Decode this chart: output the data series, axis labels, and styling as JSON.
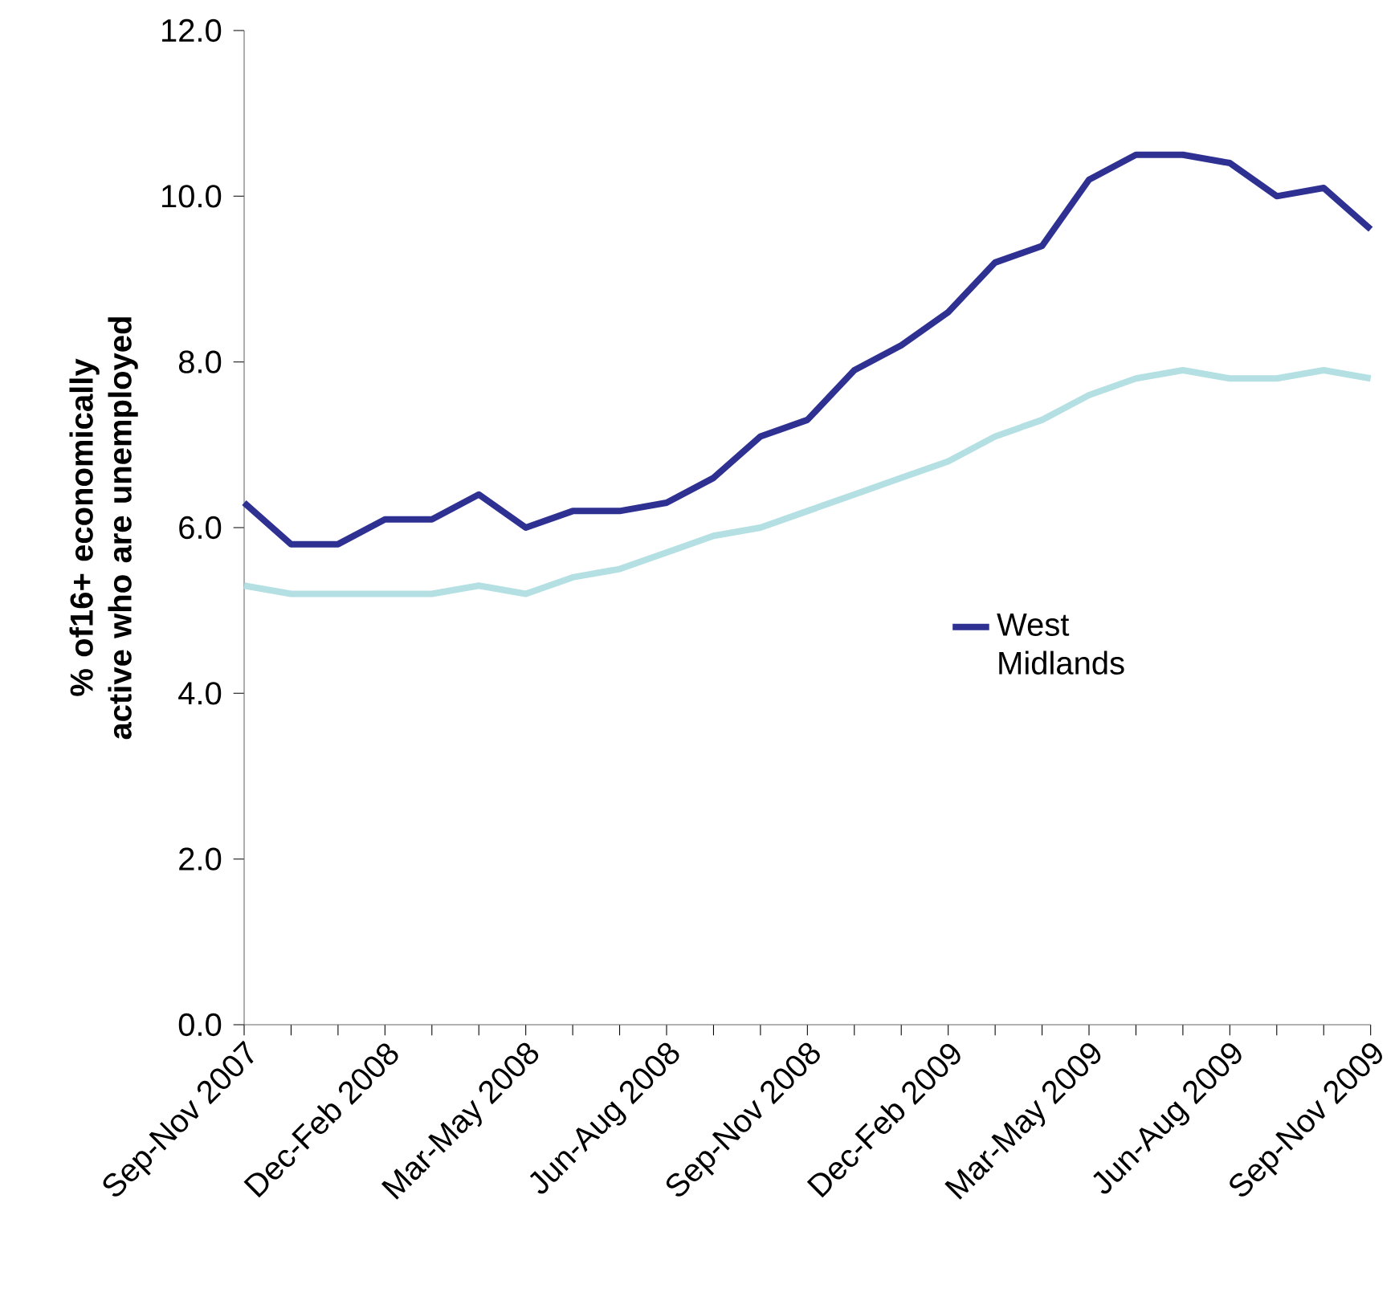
{
  "chart_data": {
    "type": "line",
    "ylabel": "% of16+ economically active who are unemployed",
    "categories": [
      "Sep-Nov 2007",
      null,
      null,
      "Dec-Feb 2008",
      null,
      null,
      "Mar-May 2008",
      null,
      null,
      "Jun-Aug 2008",
      null,
      null,
      "Sep-Nov 2008",
      null,
      null,
      "Dec-Feb 2009",
      null,
      null,
      "Mar-May 2009",
      null,
      null,
      "Jun-Aug 2009",
      null,
      null,
      "Sep-Nov 2009"
    ],
    "series": [
      {
        "name": "West Midlands",
        "color": "#2e3192",
        "values": [
          6.3,
          5.8,
          5.8,
          6.1,
          6.1,
          6.4,
          6.0,
          6.2,
          6.2,
          6.3,
          6.6,
          7.1,
          7.3,
          7.9,
          8.2,
          8.6,
          9.2,
          9.4,
          10.2,
          10.5,
          10.5,
          10.4,
          10.0,
          10.1,
          9.6
        ]
      },
      {
        "color": "#b4e0e4",
        "values": [
          5.3,
          5.2,
          5.2,
          5.2,
          5.2,
          5.3,
          5.2,
          5.4,
          5.5,
          5.7,
          5.9,
          6.0,
          6.2,
          6.4,
          6.6,
          6.8,
          7.1,
          7.3,
          7.6,
          7.8,
          7.9,
          7.8,
          7.8,
          7.9,
          7.8
        ]
      }
    ],
    "ylim": [
      0,
      12
    ],
    "yticks": [
      {
        "value": 0,
        "label": "0.0"
      },
      {
        "value": 2,
        "label": "2.0"
      },
      {
        "value": 4,
        "label": "4.0"
      },
      {
        "value": 6,
        "label": "6.0"
      },
      {
        "value": 8,
        "label": "8.0"
      },
      {
        "value": 10,
        "label": "10.0"
      },
      {
        "value": 12,
        "label": "12.0"
      }
    ],
    "legend": "right",
    "grid": false,
    "marker": "none",
    "line_style": "solid"
  }
}
